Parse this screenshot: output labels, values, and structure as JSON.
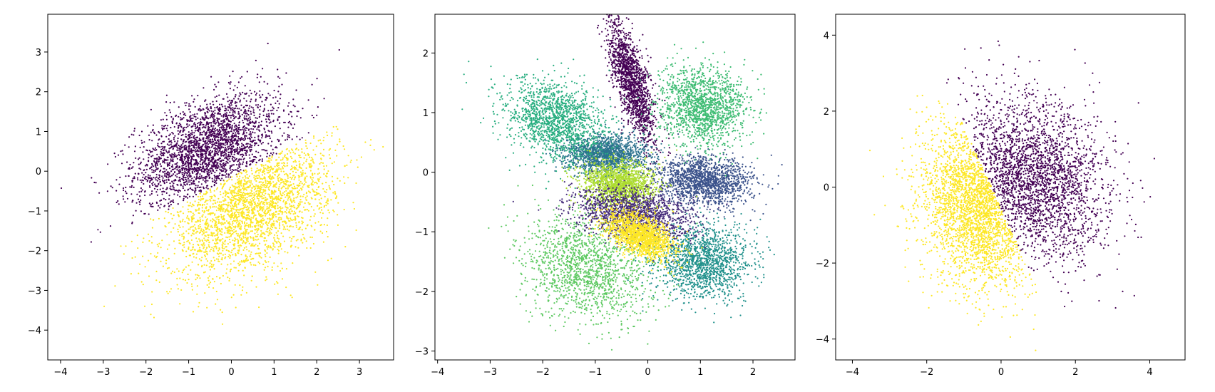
{
  "palette": {
    "viridis": [
      "#440154",
      "#46327e",
      "#365c8d",
      "#277f8e",
      "#1fa187",
      "#4ac16d",
      "#a0da39",
      "#fde725"
    ]
  },
  "chart_data": [
    {
      "type": "scatter",
      "title": "",
      "xlabel": "",
      "ylabel": "",
      "xlim": [
        -4.3,
        3.8
      ],
      "ylim": [
        -4.75,
        3.95
      ],
      "xticks": [
        -4,
        -3,
        -2,
        -1,
        0,
        1,
        2,
        3
      ],
      "yticks": [
        -4,
        -3,
        -2,
        -1,
        0,
        1,
        2,
        3
      ],
      "grid": false,
      "legend": "none",
      "point_count_per_cluster": 2600,
      "clusters": [
        {
          "class": 0,
          "color": "#440154",
          "center": [
            -0.55,
            0.55
          ],
          "spread": [
            0.85,
            0.7
          ],
          "corr": 0.45,
          "split": {
            "side": "above",
            "line": [
              0.55,
              -0.15
            ]
          }
        },
        {
          "class": 1,
          "color": "#fde725",
          "center": [
            0.45,
            -0.9
          ],
          "spread": [
            0.95,
            0.85
          ],
          "corr": 0.45,
          "split": {
            "side": "below",
            "line": [
              0.55,
              -0.15
            ]
          }
        }
      ]
    },
    {
      "type": "scatter",
      "title": "",
      "xlabel": "",
      "ylabel": "",
      "xlim": [
        -4.05,
        2.8
      ],
      "ylim": [
        -3.15,
        2.65
      ],
      "xticks": [
        -4,
        -3,
        -2,
        -1,
        0,
        1,
        2
      ],
      "yticks": [
        -3,
        -2,
        -1,
        0,
        1,
        2
      ],
      "grid": false,
      "legend": "none",
      "point_count_per_cluster": 1500,
      "clusters": [
        {
          "class": 0,
          "color": "#440154",
          "center": [
            -0.3,
            1.5
          ],
          "spread": [
            0.22,
            0.5
          ],
          "corr": -0.7
        },
        {
          "class": 1,
          "color": "#3b528b",
          "center": [
            1.1,
            -0.15
          ],
          "spread": [
            0.45,
            0.2
          ],
          "corr": -0.1
        },
        {
          "class": 2,
          "color": "#2c728e",
          "center": [
            -0.8,
            0.3
          ],
          "spread": [
            0.38,
            0.16
          ],
          "corr": 0.0
        },
        {
          "class": 3,
          "color": "#21918c",
          "center": [
            1.05,
            -1.5
          ],
          "spread": [
            0.45,
            0.3
          ],
          "corr": 0.0
        },
        {
          "class": 4,
          "color": "#28ae80",
          "center": [
            -1.75,
            0.85
          ],
          "spread": [
            0.48,
            0.35
          ],
          "corr": -0.25
        },
        {
          "class": 5,
          "color": "#3ebc73",
          "center": [
            1.05,
            1.1
          ],
          "spread": [
            0.42,
            0.32
          ],
          "corr": 0.0
        },
        {
          "class": 6,
          "color": "#5ec962",
          "center": [
            -1.15,
            -1.6
          ],
          "spread": [
            0.62,
            0.45
          ],
          "corr": -0.2
        },
        {
          "class": 7,
          "color": "#addc30",
          "center": [
            -0.55,
            -0.2
          ],
          "spread": [
            0.35,
            0.2
          ],
          "corr": -0.1
        },
        {
          "class": 8,
          "color": "#472d7b",
          "center": [
            -0.3,
            -0.7
          ],
          "spread": [
            0.55,
            0.22
          ],
          "corr": -0.3
        },
        {
          "class": 9,
          "color": "#fde725",
          "center": [
            -0.15,
            -1.05
          ],
          "spread": [
            0.32,
            0.2
          ],
          "corr": -0.5
        }
      ]
    },
    {
      "type": "scatter",
      "title": "",
      "xlabel": "",
      "ylabel": "",
      "xlim": [
        -4.45,
        4.95
      ],
      "ylim": [
        -4.55,
        4.55
      ],
      "xticks": [
        -4,
        -2,
        0,
        2,
        4
      ],
      "yticks": [
        -4,
        -2,
        0,
        2,
        4
      ],
      "grid": false,
      "legend": "none",
      "point_count_per_cluster": 2600,
      "clusters": [
        {
          "class": 0,
          "color": "#440154",
          "center": [
            0.85,
            0.25
          ],
          "spread": [
            1.0,
            1.05
          ],
          "corr": -0.2,
          "split": {
            "side": "right",
            "line": [
              -2.15,
              -0.55
            ]
          }
        },
        {
          "class": 1,
          "color": "#fde725",
          "center": [
            -0.6,
            -0.55
          ],
          "spread": [
            0.75,
            1.05
          ],
          "corr": -0.2,
          "split": {
            "side": "left",
            "line": [
              -2.15,
              -0.55
            ]
          }
        }
      ]
    }
  ]
}
